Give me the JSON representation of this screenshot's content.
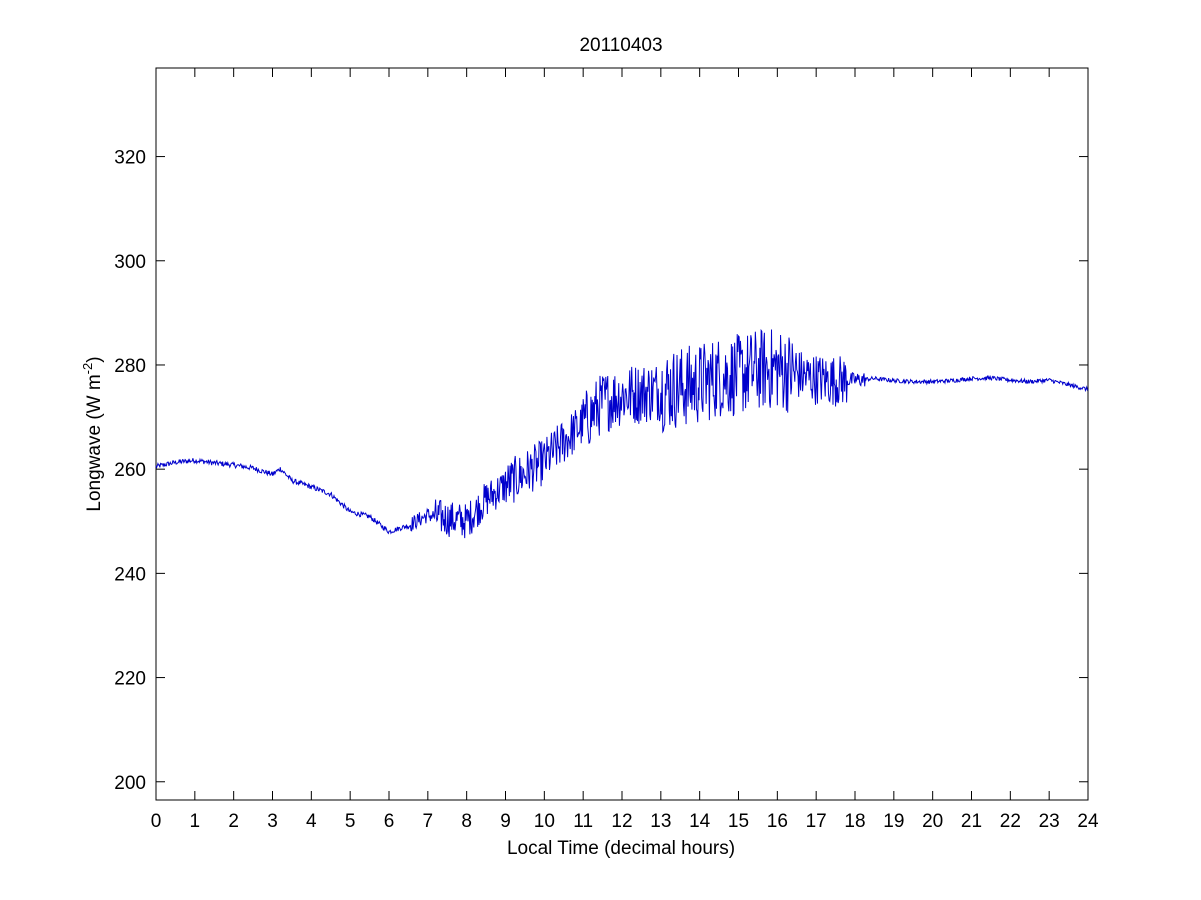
{
  "chart_data": {
    "type": "line",
    "title": "20110403",
    "xlabel": "Local Time (decimal hours)",
    "ylabel_main": "Longwave (W m",
    "ylabel_sup": "-2",
    "ylabel_close": ")",
    "xlim": [
      0,
      24
    ],
    "ylim": [
      196.5,
      337
    ],
    "xticks": [
      0,
      1,
      2,
      3,
      4,
      5,
      6,
      7,
      8,
      9,
      10,
      11,
      12,
      13,
      14,
      15,
      16,
      17,
      18,
      19,
      20,
      21,
      22,
      23,
      24
    ],
    "yticks": [
      200,
      220,
      240,
      260,
      280,
      300,
      320
    ],
    "grid": false,
    "line_color": "#0000cc",
    "series": [
      {
        "x": [
          0,
          0.5,
          1,
          1.5,
          2,
          2.5,
          3,
          3.2,
          3.5,
          4,
          4.5,
          5,
          5.5,
          6,
          6.5,
          7,
          7.5,
          8,
          8.5,
          9,
          9.5,
          10,
          10.5,
          11,
          11.5,
          12,
          12.5,
          13,
          13.5,
          14,
          14.5,
          15,
          15.5,
          16,
          16.5,
          17,
          17.5,
          18,
          18.5,
          19,
          19.5,
          20,
          20.5,
          21,
          21.5,
          22,
          22.5,
          23,
          23.5,
          24
        ],
        "values": [
          260.5,
          261.3,
          261.7,
          261.2,
          260.8,
          260.2,
          259.0,
          260.1,
          257.8,
          256.6,
          255.2,
          251.8,
          250.9,
          248.0,
          249.2,
          251.2,
          250.5,
          250.0,
          254.2,
          256.9,
          259.2,
          261.5,
          265.3,
          268.8,
          272.8,
          274.2,
          274.6,
          275.1,
          275.7,
          276.4,
          277.8,
          278.0,
          279.1,
          279.3,
          278.2,
          277.3,
          277.0,
          277.1,
          277.4,
          277.0,
          276.8,
          276.8,
          277.0,
          277.4,
          277.5,
          277.1,
          276.8,
          277.1,
          276.2,
          275.3
        ]
      }
    ]
  }
}
